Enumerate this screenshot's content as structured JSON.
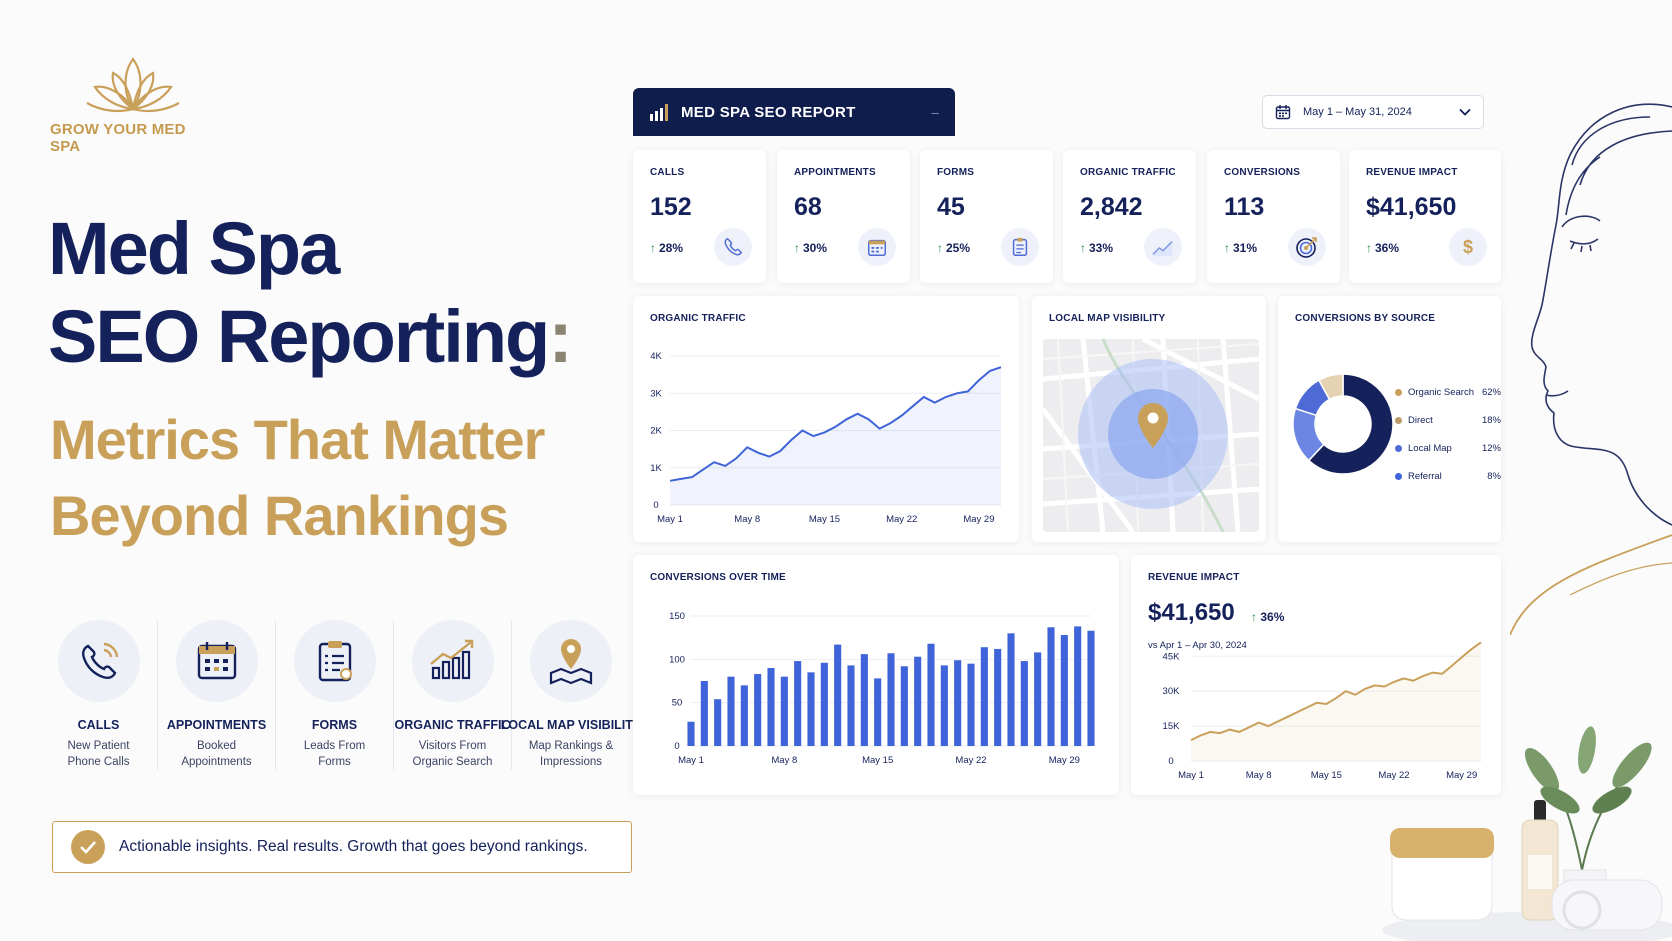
{
  "brand": {
    "name": "GROW YOUR MED SPA"
  },
  "hero": {
    "title_line1": "Med Spa",
    "title_line2": "SEO Reporting",
    "title_colon": ":",
    "subtitle_line1": "Metrics That Matter",
    "subtitle_line2": "Beyond Rankings"
  },
  "features": [
    {
      "title": "CALLS",
      "line1": "New Patient",
      "line2": "Phone Calls",
      "icon": "phone-icon"
    },
    {
      "title": "APPOINTMENTS",
      "line1": "Booked",
      "line2": "Appointments",
      "icon": "calendar-icon"
    },
    {
      "title": "FORMS",
      "line1": "Leads From",
      "line2": "Forms",
      "icon": "clipboard-icon"
    },
    {
      "title": "ORGANIC TRAFFIC",
      "line1": "Visitors From",
      "line2": "Organic Search",
      "icon": "growth-chart-icon"
    },
    {
      "title": "LOCAL MAP VISIBILITY",
      "line1": "Map Rankings &",
      "line2": "Impressions",
      "icon": "map-pin-icon"
    }
  ],
  "banner": {
    "text": "Actionable insights. Real results. Growth that goes beyond rankings."
  },
  "dashboard": {
    "title": "MED SPA SEO REPORT",
    "minimize": "–",
    "date_range": "May 1 – May 31, 2024"
  },
  "kpis": [
    {
      "label": "CALLS",
      "value": "152",
      "change": "28%",
      "icon": "phone-icon"
    },
    {
      "label": "APPOINTMENTS",
      "value": "68",
      "change": "30%",
      "icon": "calendar-icon"
    },
    {
      "label": "FORMS",
      "value": "45",
      "change": "25%",
      "icon": "clipboard-icon"
    },
    {
      "label": "ORGANIC TRAFFIC",
      "value": "2,842",
      "change": "33%",
      "icon": "trend-icon"
    },
    {
      "label": "CONVERSIONS",
      "value": "113",
      "change": "31%",
      "icon": "target-icon"
    },
    {
      "label": "REVENUE IMPACT",
      "value": "$41,650",
      "change": "36%",
      "icon": "dollar-icon"
    }
  ],
  "colors": {
    "navy": "#14215a",
    "gold": "#c9a05a",
    "blue": "#3f63d8",
    "green": "#2f8a45"
  },
  "chart_data": [
    {
      "type": "area",
      "title": "ORGANIC TRAFFIC",
      "x_ticks": [
        "May 1",
        "May 8",
        "May 15",
        "May 22",
        "May 29"
      ],
      "y_ticks": [
        "0",
        "1K",
        "2K",
        "3K",
        "4K"
      ],
      "ylim": [
        0,
        4000
      ],
      "x": [
        1,
        2,
        3,
        4,
        5,
        6,
        7,
        8,
        9,
        10,
        11,
        12,
        13,
        14,
        15,
        16,
        17,
        18,
        19,
        20,
        21,
        22,
        23,
        24,
        25,
        26,
        27,
        28,
        29,
        30,
        31
      ],
      "values": [
        650,
        700,
        750,
        950,
        1150,
        1050,
        1250,
        1550,
        1400,
        1300,
        1450,
        1750,
        2000,
        1850,
        1950,
        2100,
        2300,
        2450,
        2300,
        2050,
        2200,
        2400,
        2650,
        2900,
        2750,
        2900,
        3000,
        3050,
        3350,
        3600,
        3700
      ],
      "color": "#3f63d8"
    },
    {
      "type": "map",
      "title": "LOCAL MAP VISIBILITY",
      "icon": "map-pin-icon"
    },
    {
      "type": "pie",
      "title": "CONVERSIONS BY SOURCE",
      "labels": [
        "Organic Search",
        "Direct",
        "Local Map",
        "Referral"
      ],
      "labels_pct": [
        "62%",
        "18%",
        "12%",
        "8%"
      ],
      "values": [
        62,
        18,
        12,
        8
      ],
      "colors": [
        "#14215a",
        "#c9a05a",
        "#4d6ad6",
        "#9fb3ee"
      ]
    },
    {
      "type": "bar",
      "title": "CONVERSIONS OVER TIME",
      "x_ticks": [
        "May 1",
        "May 8",
        "May 15",
        "May 22",
        "May 29"
      ],
      "y_ticks": [
        "0",
        "50",
        "100",
        "150"
      ],
      "ylim": [
        0,
        150
      ],
      "x": [
        1,
        2,
        3,
        4,
        5,
        6,
        7,
        8,
        9,
        10,
        11,
        12,
        13,
        14,
        15,
        16,
        17,
        18,
        19,
        20,
        21,
        22,
        23,
        24,
        25,
        26,
        27,
        28,
        29,
        30,
        31
      ],
      "values": [
        28,
        75,
        54,
        80,
        70,
        83,
        90,
        80,
        98,
        85,
        96,
        117,
        93,
        106,
        78,
        107,
        92,
        103,
        118,
        93,
        99,
        95,
        114,
        112,
        130,
        98,
        108,
        137,
        128,
        138,
        133
      ],
      "color": "#3f63d8"
    },
    {
      "type": "line",
      "title": "REVENUE IMPACT",
      "value": "$41,650",
      "change": "36%",
      "comparison": "vs Apr 1 – Apr 30, 2024",
      "x_ticks": [
        "May 1",
        "May 8",
        "May 15",
        "May 22",
        "May 29"
      ],
      "y_ticks": [
        "0",
        "15K",
        "30K",
        "45K"
      ],
      "ylim": [
        0,
        55000
      ],
      "x": [
        1,
        2,
        3,
        4,
        5,
        6,
        7,
        8,
        9,
        10,
        11,
        12,
        13,
        14,
        15,
        16,
        17,
        18,
        19,
        20,
        21,
        22,
        23,
        24,
        25,
        26,
        27,
        28,
        29,
        30,
        31
      ],
      "values": [
        9000,
        11000,
        12500,
        12000,
        13500,
        12500,
        14500,
        16500,
        15000,
        17000,
        19000,
        21000,
        23000,
        25000,
        24500,
        27000,
        30000,
        28500,
        31000,
        32500,
        32000,
        34000,
        35500,
        34500,
        36500,
        38000,
        37500,
        41000,
        44500,
        48000,
        51000
      ],
      "color": "#c9a05a"
    }
  ]
}
